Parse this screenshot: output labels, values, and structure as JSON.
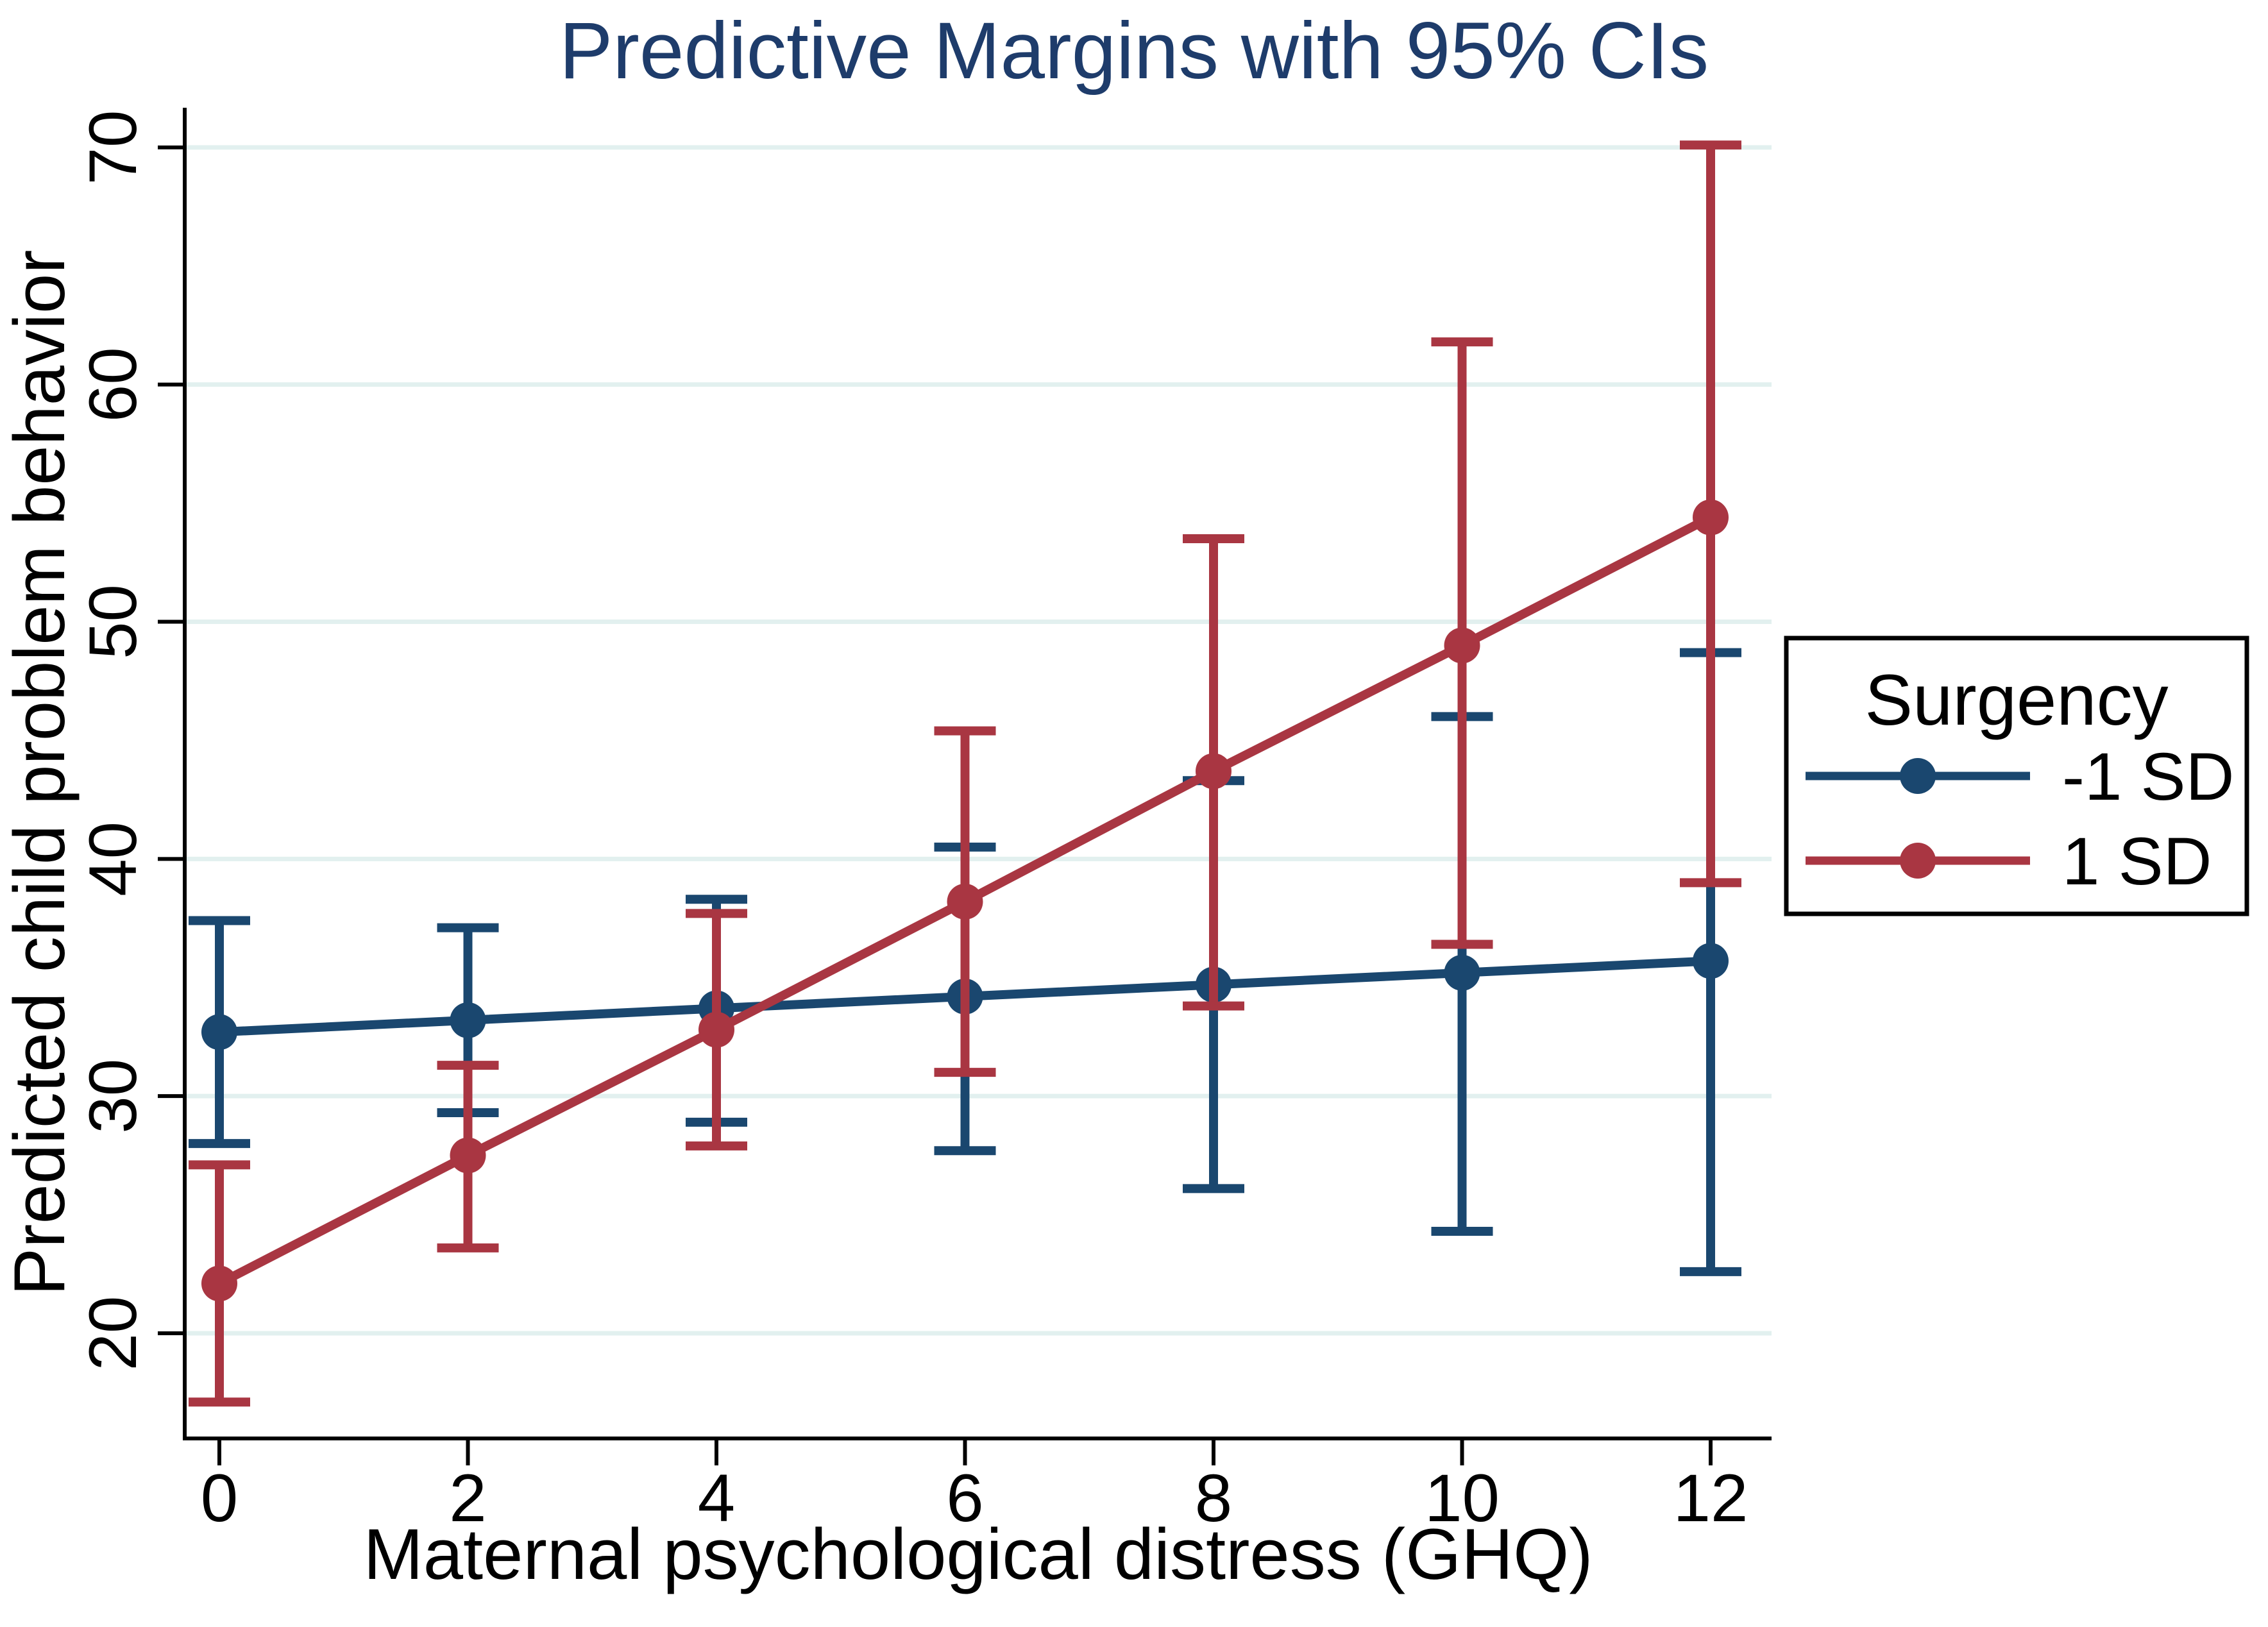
{
  "title": "Predictive Margins with 95% CIs",
  "chart_data": {
    "type": "line",
    "title": "Predictive Margins with 95% CIs",
    "xlabel": "Maternal psychological distress (GHQ)",
    "ylabel": "Predicted child problem behavior",
    "x": [
      0,
      2,
      4,
      6,
      8,
      10,
      12
    ],
    "xticks": [
      0,
      2,
      4,
      6,
      8,
      10,
      12
    ],
    "yticks": [
      20,
      30,
      40,
      50,
      60,
      70
    ],
    "xlim": [
      -0.3,
      12.5
    ],
    "ylim": [
      15.6,
      71.7
    ],
    "grid": "horizontal-gridlines",
    "error_bars": "95% CI with caps",
    "series": [
      {
        "name": "-1 SD",
        "color": "#1a476f",
        "values": [
          32.7,
          33.2,
          33.7,
          34.2,
          34.7,
          35.2,
          35.7
        ],
        "ci_low": [
          28.0,
          29.3,
          28.9,
          27.7,
          26.1,
          24.3,
          22.6
        ],
        "ci_high": [
          37.4,
          37.1,
          38.3,
          40.5,
          43.3,
          46.0,
          48.7
        ]
      },
      {
        "name": "1 SD",
        "color": "#a93642",
        "values": [
          22.1,
          27.5,
          32.8,
          38.2,
          43.7,
          49.0,
          54.4
        ],
        "ci_low": [
          17.1,
          23.6,
          27.9,
          31.0,
          33.8,
          36.4,
          39.0
        ],
        "ci_high": [
          27.1,
          31.3,
          37.7,
          45.4,
          53.5,
          61.8,
          70.1
        ]
      }
    ],
    "legend": {
      "title": "Surgency",
      "entries": [
        "-1 SD",
        "1 SD"
      ],
      "position": "right-middle"
    }
  },
  "colors": {
    "title_text": "#1e3c6b",
    "axis": "#000000",
    "gridline": "#e2f0ef",
    "background": "#ffffff",
    "series_neg1sd": "#1a476f",
    "series_pos1sd": "#a93642"
  }
}
